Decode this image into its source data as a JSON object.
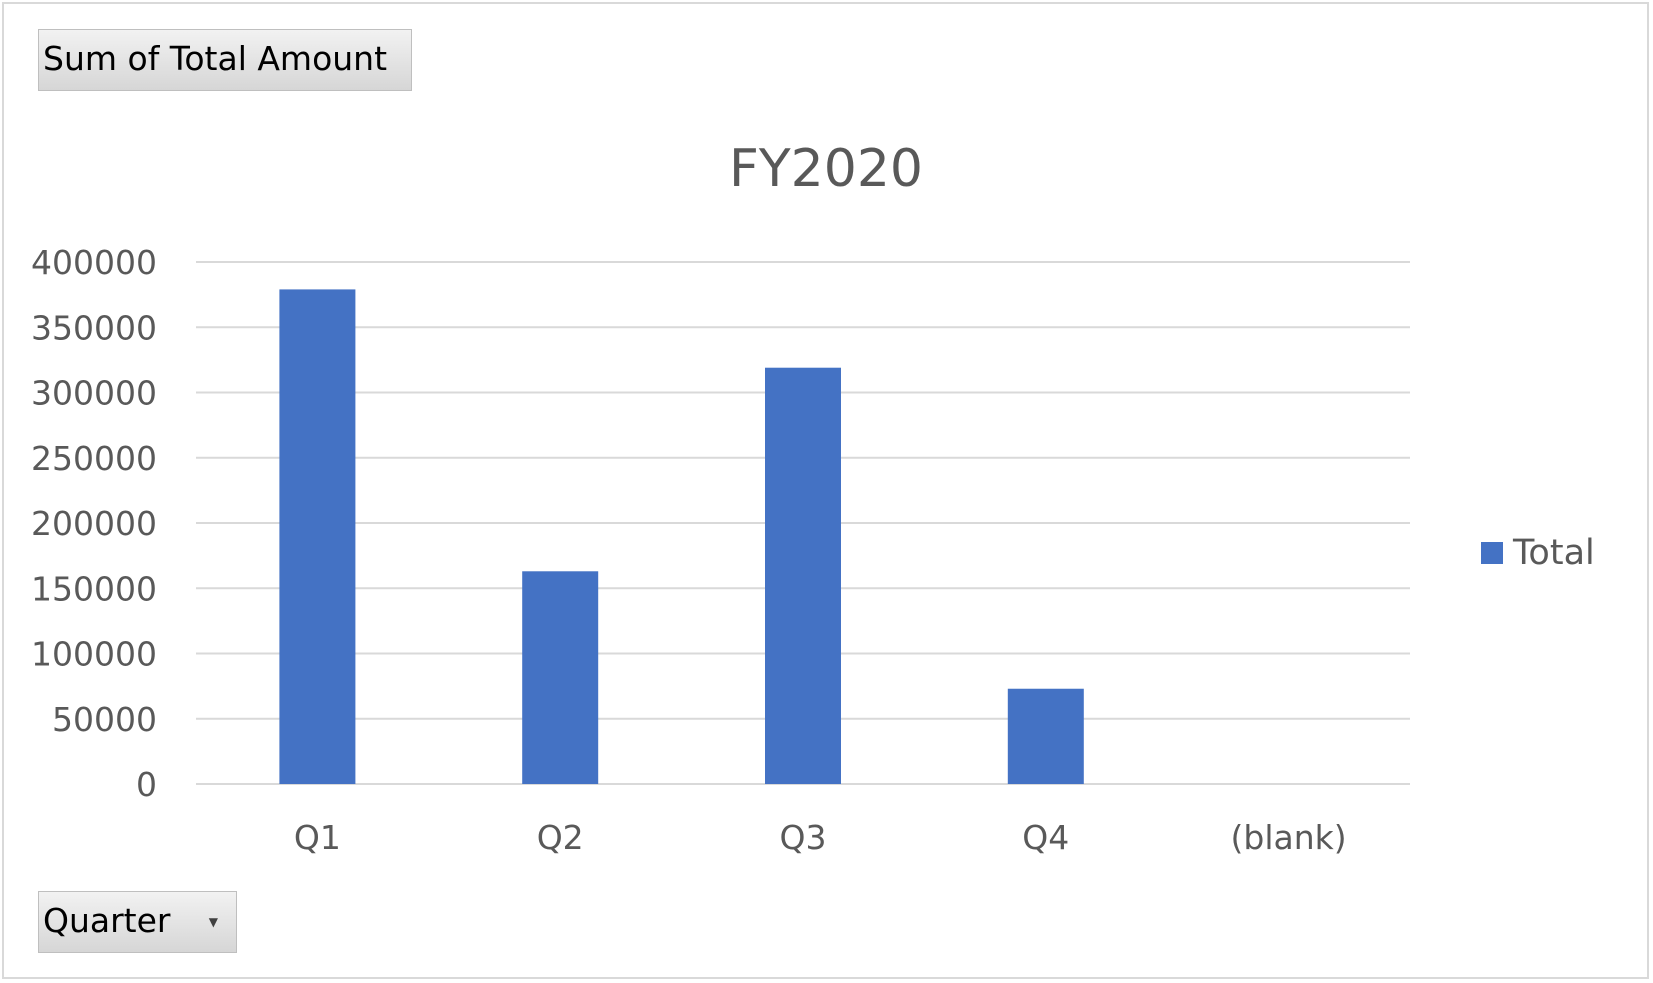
{
  "filters": {
    "value_field_label": "Sum of Total Amount",
    "axis_field_label": "Quarter"
  },
  "chart_data": {
    "type": "bar",
    "title": "FY2020",
    "categories": [
      "Q1",
      "Q2",
      "Q3",
      "Q4",
      "(blank)"
    ],
    "series": [
      {
        "name": "Total",
        "values": [
          379000,
          163000,
          319000,
          73000,
          null
        ],
        "color": "#4472c4"
      }
    ],
    "ylim": [
      0,
      400000
    ],
    "yticks": [
      0,
      50000,
      100000,
      150000,
      200000,
      250000,
      300000,
      350000,
      400000
    ],
    "grid": true,
    "legend": "right"
  }
}
